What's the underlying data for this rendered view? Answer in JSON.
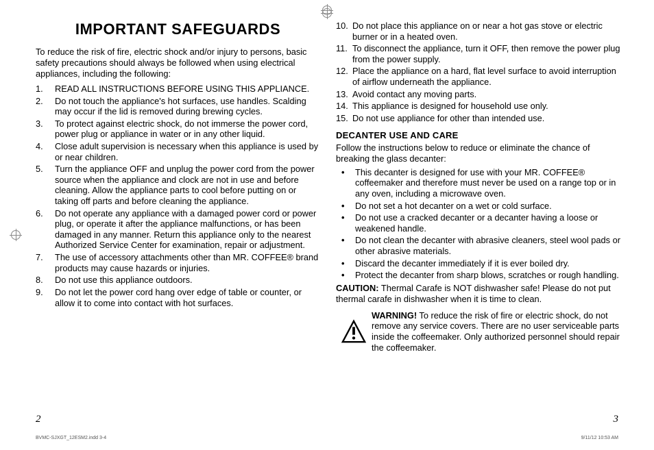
{
  "title": "IMPORTANT SAFEGUARDS",
  "intro": "To reduce the risk of fire, electric shock and/or injury to persons, basic safety precautions should always be followed when using electrical appliances, including the following:",
  "list1": [
    "READ ALL INSTRUCTIONS BEFORE USING THIS APPLIANCE.",
    "Do not touch the appliance's hot surfaces, use handles. Scalding may occur if the lid is removed during brewing cycles.",
    "To protect against electric shock, do not immerse the power cord, power plug or appliance in water or in any other liquid.",
    "Close adult supervision is necessary when this appliance is used by or near children.",
    "Turn the appliance OFF and unplug the power cord from the power source when the appliance and clock are not in use and before cleaning. Allow the appliance parts to cool before putting on or taking off parts and before cleaning the appliance.",
    "Do not operate any appliance with a damaged power cord or power plug, or operate it after the appliance malfunctions, or has been damaged in any manner. Return this appliance only to the nearest Authorized Service Center for examination, repair or adjustment.",
    "The use of accessory attachments other than MR. COFFEE® brand products may cause hazards or injuries.",
    "Do not use this appliance outdoors.",
    "Do not let the power cord hang over edge of table or counter, or allow it to come into contact with hot surfaces."
  ],
  "list2": [
    "Do not place this appliance on or near a hot gas stove or electric burner or in a heated oven.",
    "To disconnect the appliance, turn it OFF, then remove the power plug from the power supply.",
    "Place the appliance on a hard, flat level surface to avoid interruption of airflow underneath the appliance.",
    "Avoid contact any moving parts.",
    "This appliance is designed for household use only.",
    "Do not use appliance for other than intended use."
  ],
  "decanter_heading": "DECANTER USE AND CARE",
  "decanter_intro": "Follow the instructions below to reduce or eliminate the chance of breaking the glass decanter:",
  "bullets": [
    "This decanter is designed for use with your MR. COFFEE® coffeemaker and therefore must never be used on a range top or in any oven, including a microwave oven.",
    "Do not set a hot decanter on a wet or cold surface.",
    "Do not use a cracked decanter or a decanter having a loose or weakened handle.",
    "Do not clean the decanter with abrasive cleaners, steel wool pads or other abrasive materials.",
    "Discard the decanter immediately if it is ever boiled dry.",
    "Protect the decanter from sharp blows, scratches or rough handling."
  ],
  "caution_label": "CAUTION:",
  "caution_text": " Thermal Carafe is NOT dishwasher safe! Please do not put thermal carafe in dishwasher when it is time to clean.",
  "warning_label": "WARNING!",
  "warning_text": " To reduce the risk of fire or electric shock, do not remove any service covers. There are no user serviceable parts inside the coffeemaker. Only authorized personnel should repair the coffeemaker.",
  "page_left": "2",
  "page_right": "3",
  "footer_left": "BVMC-SJXGT_12ESM2.indd   3-4",
  "footer_right": "9/11/12   10:53 AM"
}
